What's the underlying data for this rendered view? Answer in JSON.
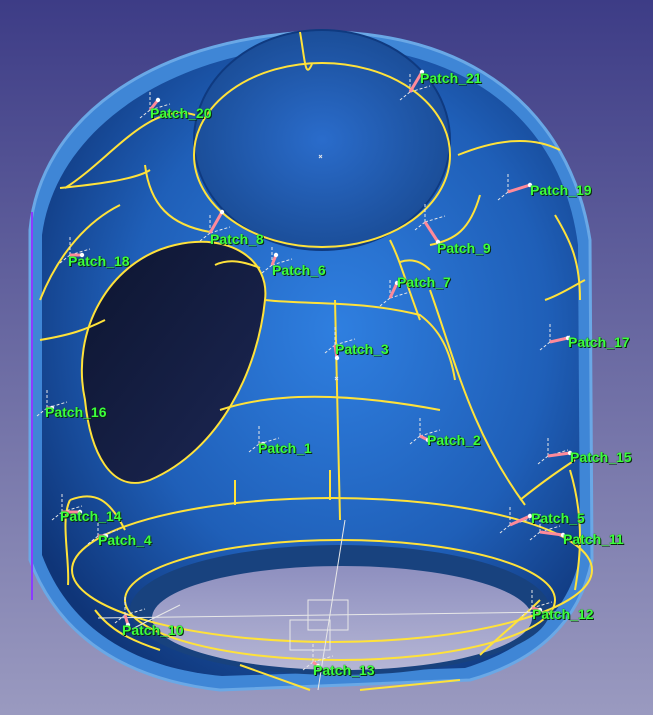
{
  "colors": {
    "background_top": "#3d3c86",
    "background_bottom": "#9a9ac0",
    "part_body": "#1f66c2",
    "part_rim": "#4f93d8",
    "part_dark": "#0c2c66",
    "opening": "#141a36",
    "patch_boundary": "#ffe23a",
    "label_text": "#3cff3c",
    "anchor_line": "#ff8a9a",
    "axis_lines": "#e8e8e8",
    "edge_accent": "#8b3cff"
  },
  "patches": [
    {
      "id": "patch-21",
      "label": "Patch_21",
      "icon": "patch-anchor-icon"
    },
    {
      "id": "patch-20",
      "label": "Patch_20",
      "icon": "patch-anchor-icon"
    },
    {
      "id": "patch-19",
      "label": "Patch_19",
      "icon": "patch-anchor-icon"
    },
    {
      "id": "patch-18",
      "label": "Patch_18",
      "icon": "patch-anchor-icon"
    },
    {
      "id": "patch-8",
      "label": "Patch_8",
      "icon": "patch-anchor-icon"
    },
    {
      "id": "patch-9",
      "label": "Patch_9",
      "icon": "patch-anchor-icon"
    },
    {
      "id": "patch-6",
      "label": "Patch_6",
      "icon": "patch-anchor-icon"
    },
    {
      "id": "patch-7",
      "label": "Patch_7",
      "icon": "patch-anchor-icon"
    },
    {
      "id": "patch-17",
      "label": "Patch_17",
      "icon": "patch-anchor-icon"
    },
    {
      "id": "patch-3",
      "label": "Patch_3",
      "icon": "patch-anchor-icon"
    },
    {
      "id": "patch-16",
      "label": "Patch_16",
      "icon": "patch-anchor-icon"
    },
    {
      "id": "patch-1",
      "label": "Patch_1",
      "icon": "patch-anchor-icon"
    },
    {
      "id": "patch-2",
      "label": "Patch_2",
      "icon": "patch-anchor-icon"
    },
    {
      "id": "patch-15",
      "label": "Patch_15",
      "icon": "patch-anchor-icon"
    },
    {
      "id": "patch-14",
      "label": "Patch_14",
      "icon": "patch-anchor-icon"
    },
    {
      "id": "patch-5",
      "label": "Patch_5",
      "icon": "patch-anchor-icon"
    },
    {
      "id": "patch-4",
      "label": "Patch_4",
      "icon": "patch-anchor-icon"
    },
    {
      "id": "patch-11",
      "label": "Patch_11",
      "icon": "patch-anchor-icon"
    },
    {
      "id": "patch-12",
      "label": "Patch_12",
      "icon": "patch-anchor-icon"
    },
    {
      "id": "patch-10",
      "label": "Patch_10",
      "icon": "patch-anchor-icon"
    },
    {
      "id": "patch-13",
      "label": "Patch_13",
      "icon": "patch-anchor-icon"
    }
  ]
}
